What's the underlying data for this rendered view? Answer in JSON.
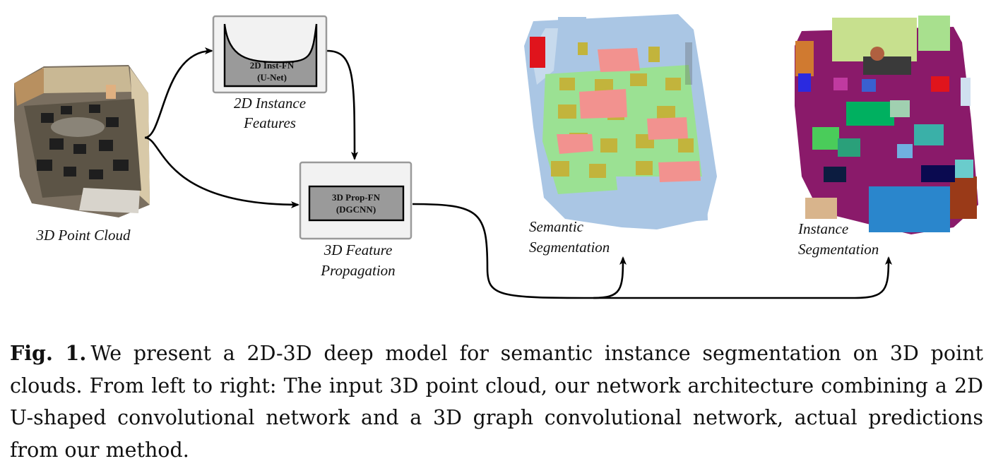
{
  "figure": {
    "input_label": "3D Point Cloud",
    "inst_box_line1": "2D Inst-FN",
    "inst_box_line2": "(U-Net)",
    "inst_label_line1": "2D Instance",
    "inst_label_line2": "Features",
    "prop_box_line1": "3D Prop-FN",
    "prop_box_line2": "(DGCNN)",
    "prop_label_line1": "3D Feature",
    "prop_label_line2": "Propagation",
    "semantic_label_line1": "Semantic",
    "semantic_label_line2": "Segmentation",
    "instance_label_line1": "Instance",
    "instance_label_line2": "Segmentation"
  },
  "caption": {
    "label": "Fig. 1.",
    "text": "We present a 2D-3D deep model for semantic instance segmentation on 3D point clouds. From left to right: The input 3D point cloud, our network architecture combining a 2D U-shaped convolutional network and a 3D graph convolutional network, actual predictions from our method."
  }
}
